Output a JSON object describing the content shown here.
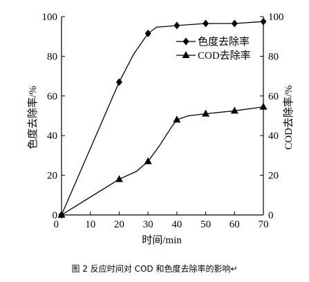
{
  "figure": {
    "caption": "图 2   反应时间对 COD 和色度去除率的影响↵",
    "trailing_mark": "↵"
  },
  "chart_data": {
    "type": "line",
    "title": "",
    "xlabel": "时间/min",
    "ylabel_left": "色度去除率/%",
    "ylabel_right": "COD去除率/%",
    "xlim": [
      0,
      70
    ],
    "ylim_left": [
      0,
      100
    ],
    "ylim_right": [
      0,
      100
    ],
    "x_ticks": [
      "10",
      "20",
      "30",
      "40",
      "50",
      "60",
      "70"
    ],
    "x_origin_label": "0",
    "y_ticks_left": [
      "0",
      "20",
      "40",
      "60",
      "80",
      "100"
    ],
    "y_ticks_right": [
      "0",
      "20",
      "40",
      "60",
      "80",
      "100"
    ],
    "grid": false,
    "legend_position": "top-right",
    "series": [
      {
        "name": "色度去除率",
        "marker": "diamond",
        "axis": "left",
        "color": "#000000",
        "points": [
          [
            0,
            0
          ],
          [
            20,
            67
          ],
          [
            30,
            91.5
          ],
          [
            40,
            95.5
          ],
          [
            50,
            96.5
          ],
          [
            60,
            96.5
          ],
          [
            70,
            97.5
          ]
        ],
        "curve": [
          [
            0,
            0
          ],
          [
            20,
            67
          ],
          [
            25,
            81
          ],
          [
            30,
            91.5
          ],
          [
            33,
            94.7
          ],
          [
            36,
            95
          ],
          [
            40,
            95.5
          ],
          [
            50,
            96.5
          ],
          [
            60,
            96.5
          ],
          [
            70,
            97.5
          ]
        ]
      },
      {
        "name": "COD去除率",
        "marker": "triangle",
        "axis": "right",
        "color": "#000000",
        "points": [
          [
            0,
            0
          ],
          [
            20,
            18
          ],
          [
            30,
            27
          ],
          [
            40,
            48
          ],
          [
            50,
            51
          ],
          [
            60,
            52.5
          ],
          [
            70,
            54.5
          ]
        ],
        "curve": [
          [
            0,
            0
          ],
          [
            20,
            18
          ],
          [
            26,
            22
          ],
          [
            30,
            27
          ],
          [
            34,
            35
          ],
          [
            38,
            44
          ],
          [
            40,
            48
          ],
          [
            44,
            50
          ],
          [
            50,
            51
          ],
          [
            60,
            52.5
          ],
          [
            70,
            54.5
          ]
        ]
      }
    ]
  }
}
